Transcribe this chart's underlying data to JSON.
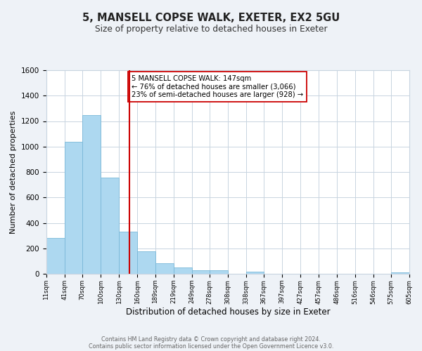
{
  "title": "5, MANSELL COPSE WALK, EXETER, EX2 5GU",
  "subtitle": "Size of property relative to detached houses in Exeter",
  "xlabel": "Distribution of detached houses by size in Exeter",
  "ylabel": "Number of detached properties",
  "bar_color": "#add8f0",
  "bar_edge_color": "#7ab8d8",
  "bin_edges": [
    11,
    41,
    70,
    100,
    130,
    160,
    189,
    219,
    249,
    278,
    308,
    338,
    367,
    397,
    427,
    457,
    486,
    516,
    546,
    575,
    605
  ],
  "bar_heights": [
    280,
    1035,
    1245,
    755,
    330,
    175,
    85,
    50,
    30,
    25,
    0,
    15,
    0,
    0,
    0,
    0,
    0,
    0,
    0,
    10
  ],
  "tick_labels": [
    "11sqm",
    "41sqm",
    "70sqm",
    "100sqm",
    "130sqm",
    "160sqm",
    "189sqm",
    "219sqm",
    "249sqm",
    "278sqm",
    "308sqm",
    "338sqm",
    "367sqm",
    "397sqm",
    "427sqm",
    "457sqm",
    "486sqm",
    "516sqm",
    "546sqm",
    "575sqm",
    "605sqm"
  ],
  "ylim": [
    0,
    1600
  ],
  "yticks": [
    0,
    200,
    400,
    600,
    800,
    1000,
    1200,
    1400,
    1600
  ],
  "property_size": 147,
  "vline_color": "#cc0000",
  "annotation_text": "5 MANSELL COPSE WALK: 147sqm\n← 76% of detached houses are smaller (3,066)\n23% of semi-detached houses are larger (928) →",
  "annotation_box_color": "#ffffff",
  "annotation_box_edge": "#cc0000",
  "footer_line1": "Contains HM Land Registry data © Crown copyright and database right 2024.",
  "footer_line2": "Contains public sector information licensed under the Open Government Licence v3.0.",
  "background_color": "#eef2f7",
  "plot_background": "#ffffff",
  "grid_color": "#c8d4e0"
}
